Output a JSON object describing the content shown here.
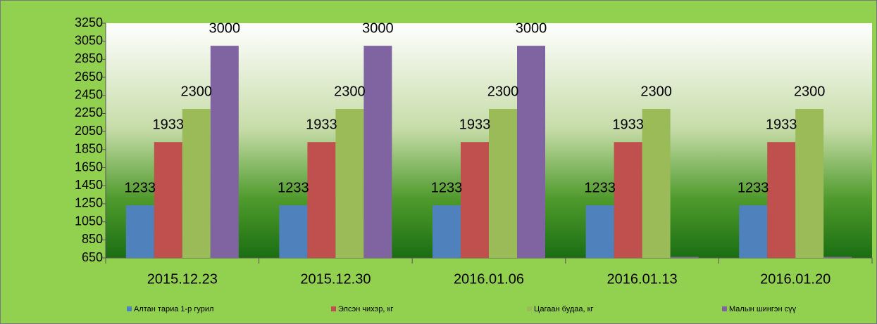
{
  "chart_data": {
    "type": "bar",
    "categories": [
      "2015.12.23",
      "2015.12.30",
      "2016.01.06",
      "2016.01.13",
      "2016.01.20"
    ],
    "series": [
      {
        "name": "Алтан тариа 1-р гурил",
        "color": "#4f81bd",
        "values": [
          1233,
          1233,
          1233,
          1233,
          1233
        ]
      },
      {
        "name": "Элсэн чихэр, кг",
        "color": "#c0504d",
        "values": [
          1933,
          1933,
          1933,
          1933,
          1933
        ]
      },
      {
        "name": "Цагаан будаа, кг",
        "color": "#9bbb59",
        "values": [
          2300,
          2300,
          2300,
          2300,
          2300
        ]
      },
      {
        "name": "Малын  шингэн сүү",
        "color": "#8064a2",
        "values": [
          3000,
          3000,
          3000,
          650,
          650
        ],
        "value_labels": [
          "3000",
          "3000",
          "3000",
          null,
          null
        ]
      }
    ],
    "ylim": [
      650,
      3250
    ],
    "yticks": [
      650,
      850,
      1050,
      1250,
      1450,
      1650,
      1850,
      2050,
      2250,
      2450,
      2650,
      2850,
      3050,
      3250
    ],
    "grid": false
  }
}
